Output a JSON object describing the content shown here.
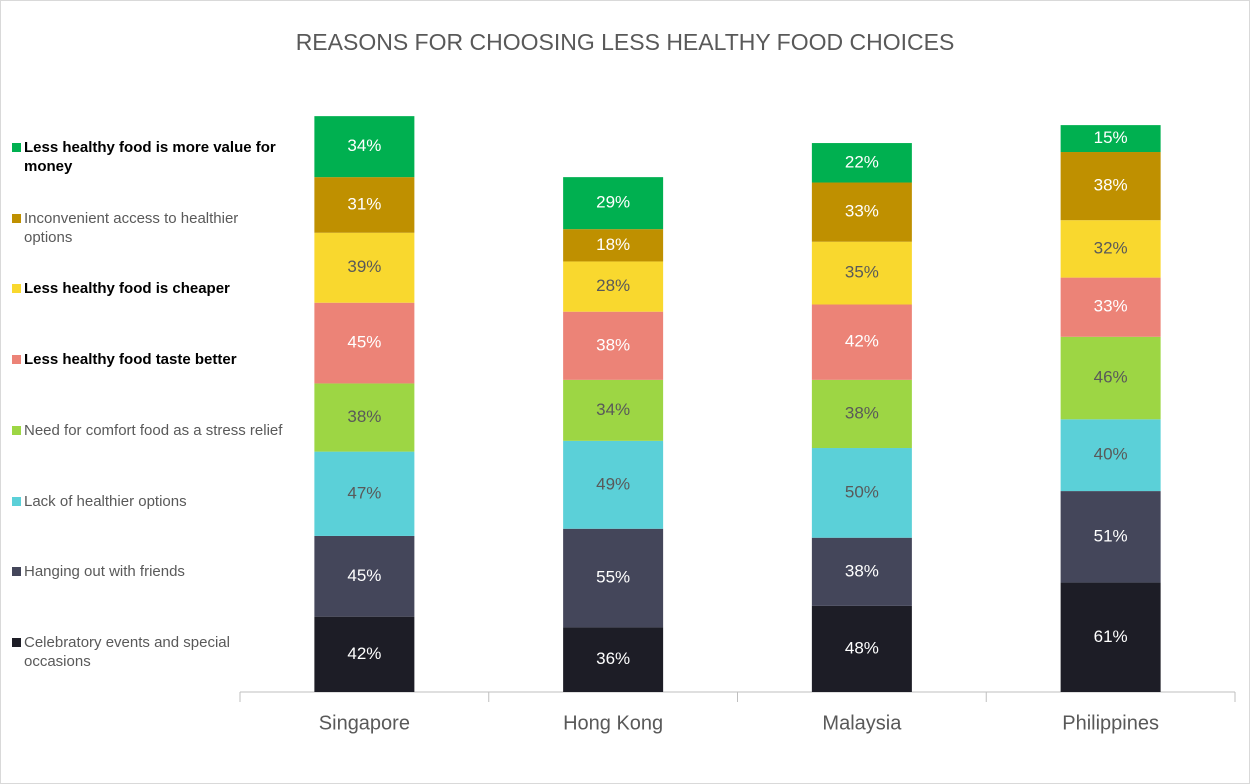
{
  "chart_data": {
    "type": "stacked_bar",
    "title": "REASONS FOR CHOOSING LESS HEALTHY FOOD CHOICES",
    "categories": [
      "Singapore",
      "Hong Kong",
      "Malaysia",
      "Philippines"
    ],
    "ylim": [
      0,
      330
    ],
    "legend": "left",
    "series": [
      {
        "name": "Celebratory events and special occasions",
        "color": "#1d1d26",
        "label_color": "#ffffff",
        "bold": false,
        "values": [
          42,
          36,
          48,
          61
        ],
        "value_labels": [
          "42%",
          "36%",
          "48%",
          "61%"
        ]
      },
      {
        "name": "Hanging out with friends",
        "color": "#44465a",
        "label_color": "#ffffff",
        "bold": false,
        "values": [
          45,
          55,
          38,
          51
        ],
        "value_labels": [
          "45%",
          "55%",
          "38%",
          "51%"
        ]
      },
      {
        "name": "Lack of healthier options",
        "color": "#5bd0d8",
        "label_color": "#595959",
        "bold": false,
        "values": [
          47,
          49,
          50,
          40
        ],
        "value_labels": [
          "47%",
          "49%",
          "50%",
          "40%"
        ]
      },
      {
        "name": "Need for comfort food as a stress relief",
        "color": "#9dd644",
        "label_color": "#595959",
        "bold": false,
        "values": [
          38,
          34,
          38,
          46
        ],
        "value_labels": [
          "38%",
          "34%",
          "38%",
          "46%"
        ]
      },
      {
        "name": "Less healthy food taste better",
        "color": "#ec8377",
        "label_color": "#ffffff",
        "bold": true,
        "values": [
          45,
          38,
          42,
          33
        ],
        "value_labels": [
          "45%",
          "38%",
          "42%",
          "33%"
        ]
      },
      {
        "name": "Less healthy food is cheaper",
        "color": "#f9d82e",
        "label_color": "#595959",
        "bold": true,
        "values": [
          39,
          28,
          35,
          32
        ],
        "value_labels": [
          "39%",
          "28%",
          "35%",
          "32%"
        ]
      },
      {
        "name": "Inconvenient access to healthier options",
        "color": "#bf9000",
        "label_color": "#ffffff",
        "bold": false,
        "values": [
          31,
          18,
          33,
          38
        ],
        "value_labels": [
          "31%",
          "18%",
          "33%",
          "38%"
        ]
      },
      {
        "name": "Less healthy food is more value for money",
        "color": "#00b050",
        "label_color": "#ffffff",
        "bold": true,
        "values": [
          34,
          29,
          22,
          15
        ],
        "value_labels": [
          "34%",
          "29%",
          "22%",
          "15%"
        ]
      }
    ]
  }
}
